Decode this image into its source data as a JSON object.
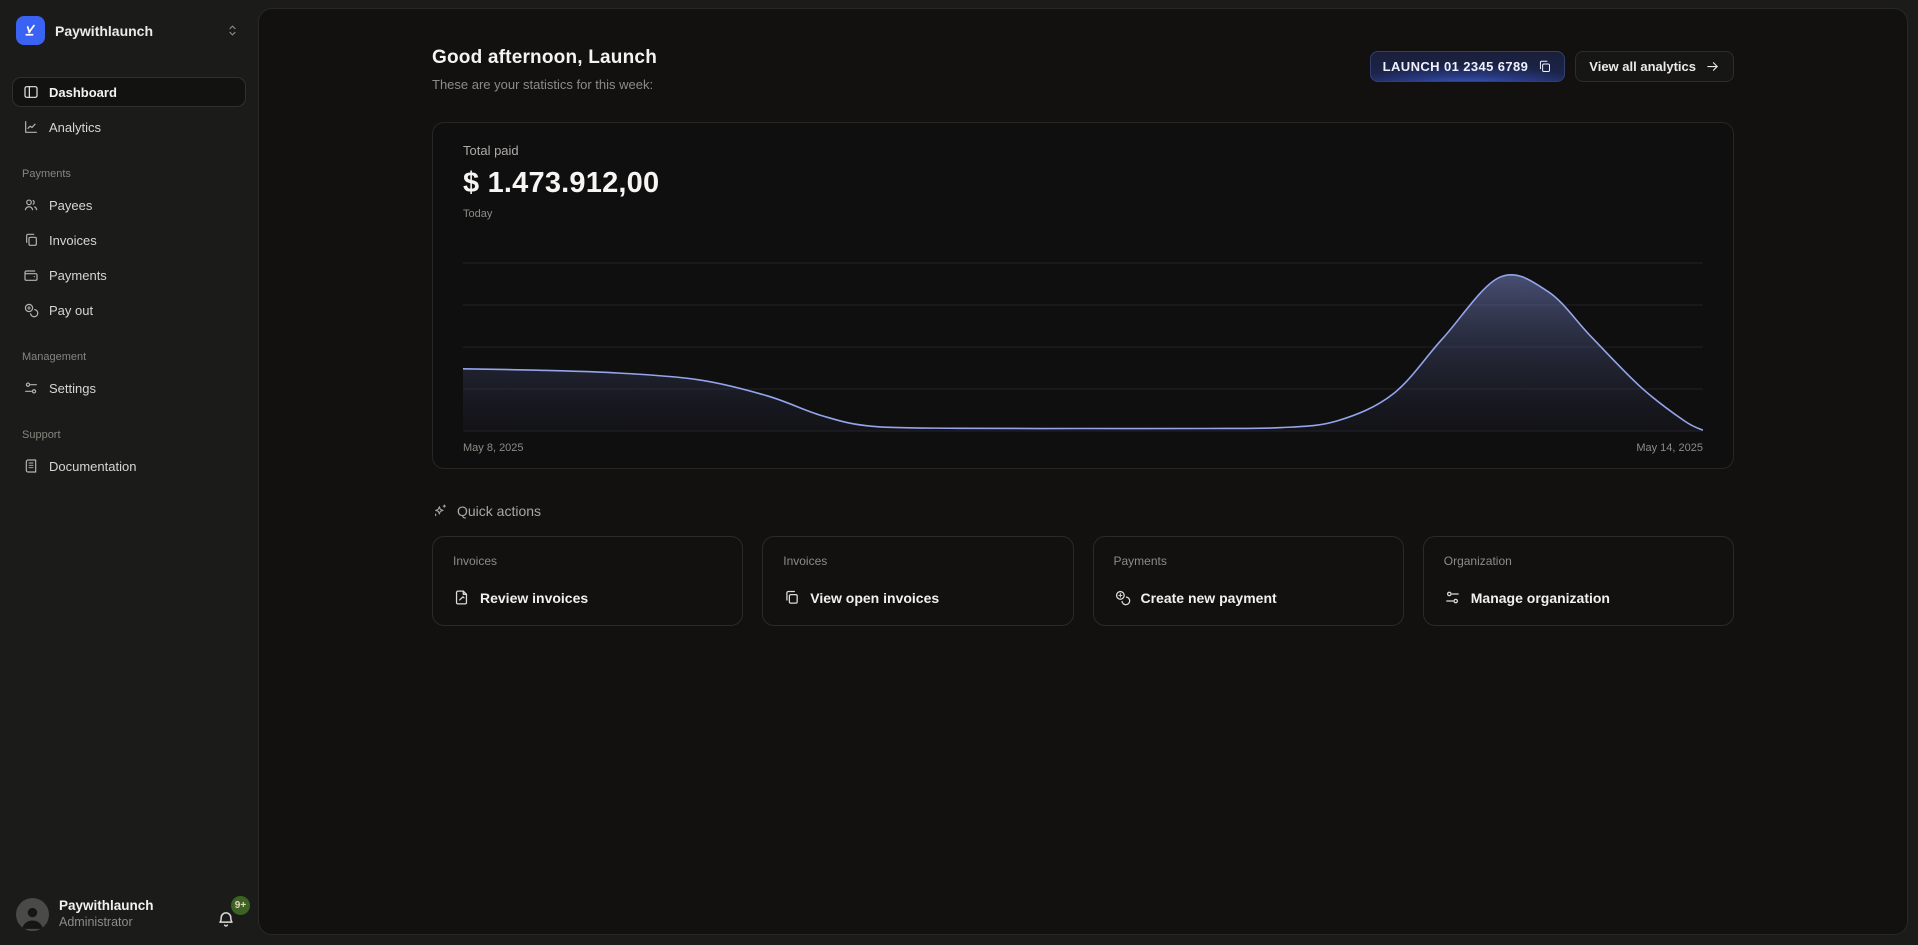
{
  "workspace": {
    "name": "Paywithlaunch",
    "logo_icon": "launch-pen-icon",
    "switcher_icon": "chevrons-up-down-icon"
  },
  "sidebar": {
    "nav": [
      {
        "label": "Dashboard",
        "icon": "dashboard-panel-icon",
        "active": true
      },
      {
        "label": "Analytics",
        "icon": "line-chart-icon",
        "active": false
      }
    ],
    "sections": [
      {
        "title": "Payments",
        "items": [
          {
            "label": "Payees",
            "icon": "users-icon"
          },
          {
            "label": "Invoices",
            "icon": "copies-icon"
          },
          {
            "label": "Payments",
            "icon": "wallet-icon"
          },
          {
            "label": "Pay out",
            "icon": "coins-icon"
          }
        ]
      },
      {
        "title": "Management",
        "items": [
          {
            "label": "Settings",
            "icon": "sliders-icon"
          }
        ]
      },
      {
        "title": "Support",
        "items": [
          {
            "label": "Documentation",
            "icon": "book-icon"
          }
        ]
      }
    ],
    "user": {
      "name": "Paywithlaunch",
      "role": "Administrator",
      "notification_badge": "9+",
      "badge_color": "#3c6323"
    }
  },
  "header": {
    "greeting": "Good afternoon, Launch",
    "subtitle": "These are your statistics for this week:",
    "account_button": {
      "label": "LAUNCH 01 2345 6789",
      "icon": "copy-icon",
      "accent_color": "#3f66e8"
    },
    "analytics_button": {
      "label": "View all analytics",
      "icon": "arrow-right-icon"
    }
  },
  "quick_actions": {
    "title": "Quick actions",
    "icon": "sparkles-icon",
    "cards": [
      {
        "category": "Invoices",
        "action": "Review invoices",
        "icon": "file-signature-icon"
      },
      {
        "category": "Invoices",
        "action": "View open invoices",
        "icon": "copies-icon"
      },
      {
        "category": "Payments",
        "action": "Create new payment",
        "icon": "coins-icon"
      },
      {
        "category": "Organization",
        "action": "Manage organization",
        "icon": "sliders-icon"
      }
    ]
  },
  "chart_data": {
    "type": "area",
    "title": "Total paid",
    "total_label": "$ 1.473.912,00",
    "period_label": "Today",
    "x_axis": {
      "start_label": "May 8, 2025",
      "end_label": "May 14, 2025"
    },
    "y_axis_labels_visible": false,
    "gridline_count": 5,
    "grid_color": "#222226",
    "line_color": "#94a5ec",
    "fill_top_color": "rgba(126,142,212,0.50)",
    "fill_mid_color": "rgba(70,80,125,0.32)",
    "fill_bottom_color": "rgba(34,39,62,0.18)",
    "note": "y values are fractions of plot height estimated from pixels; no numeric y ticks are shown in the UI",
    "points": [
      {
        "t": 0.0,
        "v": 0.37
      },
      {
        "t": 0.06,
        "v": 0.362
      },
      {
        "t": 0.125,
        "v": 0.345
      },
      {
        "t": 0.19,
        "v": 0.305
      },
      {
        "t": 0.245,
        "v": 0.21
      },
      {
        "t": 0.29,
        "v": 0.09
      },
      {
        "t": 0.33,
        "v": 0.028
      },
      {
        "t": 0.4,
        "v": 0.016
      },
      {
        "t": 0.5,
        "v": 0.015
      },
      {
        "t": 0.6,
        "v": 0.015
      },
      {
        "t": 0.66,
        "v": 0.02
      },
      {
        "t": 0.705,
        "v": 0.06
      },
      {
        "t": 0.75,
        "v": 0.22
      },
      {
        "t": 0.79,
        "v": 0.55
      },
      {
        "t": 0.836,
        "v": 0.915
      },
      {
        "t": 0.875,
        "v": 0.83
      },
      {
        "t": 0.91,
        "v": 0.56
      },
      {
        "t": 0.95,
        "v": 0.26
      },
      {
        "t": 0.985,
        "v": 0.06
      },
      {
        "t": 1.0,
        "v": 0.005
      }
    ]
  },
  "colors": {
    "outer_bg": "#1b1b19",
    "panel_bg": "#121110",
    "card_bg": "#100f0f",
    "brand_blue": "#3b63f3",
    "text_primary": "#f4f3f1",
    "text_muted": "#8d8b86"
  }
}
